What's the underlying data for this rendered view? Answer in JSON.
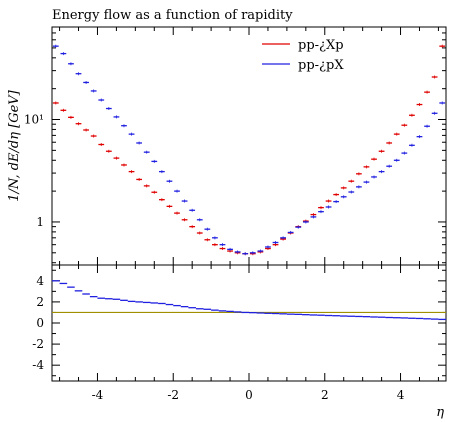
{
  "chart_data": [
    {
      "type": "line",
      "title": "Energy flow as a function of rapidity",
      "xlabel": "",
      "ylabel": "1/N, dE/dη [GeV]",
      "yscale": "log",
      "xlim": [
        -5.2,
        5.2
      ],
      "ylim": [
        0.38,
        80
      ],
      "y_tick_labels": [
        "1",
        "10¹"
      ],
      "y_tick_values": [
        1,
        10
      ],
      "legend_position": "top-right",
      "colors": {
        "series_a": "#e00000",
        "series_b": "#2020e0"
      },
      "x": [
        -5.1,
        -4.9,
        -4.7,
        -4.5,
        -4.3,
        -4.1,
        -3.9,
        -3.7,
        -3.5,
        -3.3,
        -3.1,
        -2.9,
        -2.7,
        -2.5,
        -2.3,
        -2.1,
        -1.9,
        -1.7,
        -1.5,
        -1.3,
        -1.1,
        -0.9,
        -0.7,
        -0.5,
        -0.3,
        -0.1,
        0.1,
        0.3,
        0.5,
        0.7,
        0.9,
        1.1,
        1.3,
        1.5,
        1.7,
        1.9,
        2.1,
        2.3,
        2.5,
        2.7,
        2.9,
        3.1,
        3.3,
        3.5,
        3.7,
        3.9,
        4.1,
        4.3,
        4.5,
        4.7,
        4.9,
        5.1
      ],
      "series": [
        {
          "name": "pp-¿Xp",
          "values": [
            14.5,
            12.3,
            10.5,
            9.1,
            7.9,
            6.9,
            5.7,
            4.9,
            4.2,
            3.6,
            3.1,
            2.6,
            2.25,
            1.95,
            1.65,
            1.42,
            1.22,
            1.05,
            0.9,
            0.78,
            0.67,
            0.6,
            0.55,
            0.52,
            0.5,
            0.49,
            0.49,
            0.51,
            0.55,
            0.6,
            0.68,
            0.78,
            0.9,
            1.02,
            1.18,
            1.38,
            1.6,
            1.85,
            2.15,
            2.5,
            2.95,
            3.45,
            4.1,
            4.9,
            5.9,
            7.2,
            8.8,
            11.0,
            14.0,
            18.5,
            26.0,
            52.0
          ]
        },
        {
          "name": "pp-¿pX",
          "values": [
            52.0,
            44.0,
            35.0,
            28.0,
            23.0,
            19.0,
            15.5,
            12.8,
            10.6,
            8.7,
            7.2,
            5.9,
            4.8,
            3.9,
            3.1,
            2.5,
            2.0,
            1.6,
            1.3,
            1.05,
            0.85,
            0.7,
            0.6,
            0.54,
            0.51,
            0.49,
            0.5,
            0.52,
            0.57,
            0.63,
            0.7,
            0.79,
            0.89,
            1.0,
            1.12,
            1.26,
            1.4,
            1.58,
            1.76,
            1.96,
            2.2,
            2.45,
            2.75,
            3.1,
            3.5,
            4.0,
            4.7,
            5.6,
            6.8,
            8.6,
            11.5,
            14.5
          ]
        }
      ]
    },
    {
      "type": "line",
      "title": "",
      "xlabel": "η",
      "ylabel": "",
      "xlim": [
        -5.2,
        5.2
      ],
      "ylim": [
        -5.5,
        5.5
      ],
      "x_tick_labels": [
        "-4",
        "-2",
        "0",
        "2",
        "4"
      ],
      "x_tick_values": [
        -4,
        -2,
        0,
        2,
        4
      ],
      "y_tick_labels": [
        "4",
        "2",
        "0",
        "-2",
        "-4"
      ],
      "y_tick_values": [
        4,
        2,
        0,
        -2,
        -4
      ],
      "reference_line": 1,
      "colors": {
        "reference": "#a09000",
        "ratio": "#2020e0"
      },
      "x": [
        -5.1,
        -4.9,
        -4.7,
        -4.5,
        -4.3,
        -4.1,
        -3.9,
        -3.7,
        -3.5,
        -3.3,
        -3.1,
        -2.9,
        -2.7,
        -2.5,
        -2.3,
        -2.1,
        -1.9,
        -1.7,
        -1.5,
        -1.3,
        -1.1,
        -0.9,
        -0.7,
        -0.5,
        -0.3,
        -0.1,
        0.1,
        0.3,
        0.5,
        0.7,
        0.9,
        1.1,
        1.3,
        1.5,
        1.7,
        1.9,
        2.1,
        2.3,
        2.5,
        2.7,
        2.9,
        3.1,
        3.3,
        3.5,
        3.7,
        3.9,
        4.1,
        4.3,
        4.5,
        4.7,
        4.9,
        5.1
      ],
      "series": [
        {
          "values": [
            4.0,
            3.75,
            3.4,
            3.05,
            2.75,
            2.5,
            2.35,
            2.3,
            2.25,
            2.15,
            2.05,
            2.0,
            1.95,
            1.9,
            1.85,
            1.75,
            1.65,
            1.55,
            1.45,
            1.35,
            1.3,
            1.22,
            1.15,
            1.1,
            1.05,
            1.0,
            0.98,
            0.95,
            0.92,
            0.9,
            0.87,
            0.84,
            0.82,
            0.79,
            0.76,
            0.74,
            0.71,
            0.69,
            0.66,
            0.64,
            0.62,
            0.6,
            0.57,
            0.55,
            0.52,
            0.5,
            0.48,
            0.45,
            0.43,
            0.4,
            0.37,
            0.34
          ]
        }
      ]
    }
  ]
}
